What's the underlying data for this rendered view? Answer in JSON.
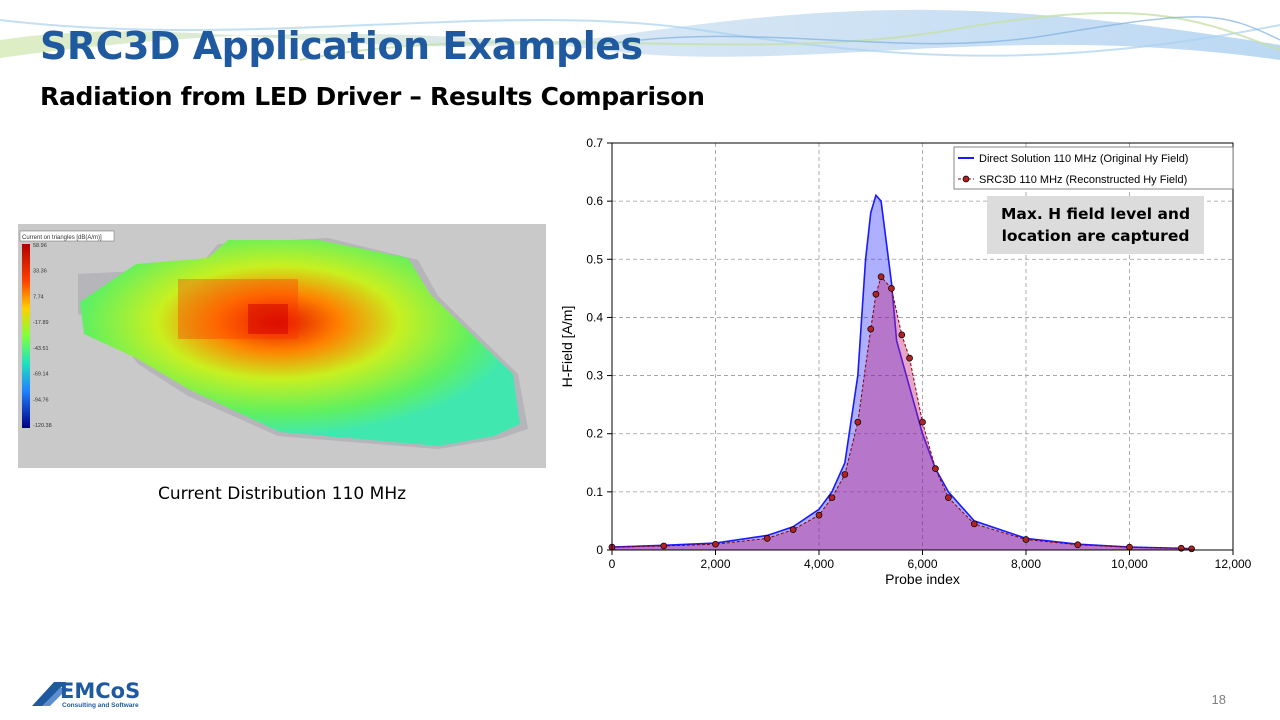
{
  "slide": {
    "title": "SRC3D Application Examples",
    "subtitle": "Radiation from LED Driver – Results Comparison",
    "page_number": "18"
  },
  "heatmap": {
    "legend_title": "Current on triangles [dB(A/m)]",
    "scale_values": [
      "58.96",
      "33.36",
      "7.74",
      "-17.89",
      "-43.51",
      "-69.14",
      "-94.76",
      "-120.38"
    ],
    "caption": "Current Distribution 110 MHz"
  },
  "annotation": "Max. H field level and\nlocation are captured",
  "logo": {
    "name": "EMCoS",
    "tagline": "Consulting and Software",
    "color": "#1f5aa0"
  },
  "colors": {
    "title": "#1f5aa0",
    "direct": "#1a1aff",
    "src3d": "#8b0000",
    "src3d_fill": "#b22222"
  },
  "chart_data": {
    "type": "line",
    "xlabel": "Probe index",
    "ylabel": "H-Field [A/m]",
    "xlim": [
      0,
      12000
    ],
    "ylim": [
      0,
      0.7
    ],
    "x_ticks": [
      0,
      2000,
      4000,
      6000,
      8000,
      10000,
      12000
    ],
    "x_tick_labels": [
      "0",
      "2,000",
      "4,000",
      "6,000",
      "8,000",
      "10,000",
      "12,000"
    ],
    "y_ticks": [
      0,
      0.1,
      0.2,
      0.3,
      0.4,
      0.5,
      0.6,
      0.7
    ],
    "y_tick_labels": [
      "0",
      "0.1",
      "0.2",
      "0.3",
      "0.4",
      "0.5",
      "0.6",
      "0.7"
    ],
    "grid": true,
    "legend_position": "top-right",
    "series": [
      {
        "name": "Direct Solution 110 MHz (Original Hy Field)",
        "color": "#1a1aff",
        "marker": "none",
        "x": [
          0,
          1000,
          2000,
          3000,
          3500,
          4000,
          4250,
          4500,
          4750,
          4900,
          5000,
          5100,
          5200,
          5300,
          5400,
          5500,
          5750,
          6000,
          6250,
          6500,
          7000,
          8000,
          9000,
          10000,
          11000,
          11200
        ],
        "y": [
          0.005,
          0.008,
          0.012,
          0.025,
          0.04,
          0.07,
          0.1,
          0.15,
          0.3,
          0.5,
          0.58,
          0.61,
          0.6,
          0.53,
          0.46,
          0.36,
          0.28,
          0.2,
          0.14,
          0.1,
          0.05,
          0.02,
          0.01,
          0.005,
          0.003,
          0.002
        ]
      },
      {
        "name": "SRC3D 110 MHz (Reconstructed Hy Field)",
        "color": "#8b0000",
        "marker": "circle",
        "x": [
          0,
          1000,
          2000,
          3000,
          3500,
          4000,
          4250,
          4500,
          4750,
          5000,
          5100,
          5200,
          5400,
          5600,
          5750,
          6000,
          6250,
          6500,
          7000,
          8000,
          9000,
          10000,
          11000,
          11200
        ],
        "y": [
          0.005,
          0.007,
          0.01,
          0.02,
          0.035,
          0.06,
          0.09,
          0.13,
          0.22,
          0.38,
          0.44,
          0.47,
          0.45,
          0.37,
          0.33,
          0.22,
          0.14,
          0.09,
          0.045,
          0.018,
          0.009,
          0.005,
          0.003,
          0.002
        ]
      }
    ]
  }
}
